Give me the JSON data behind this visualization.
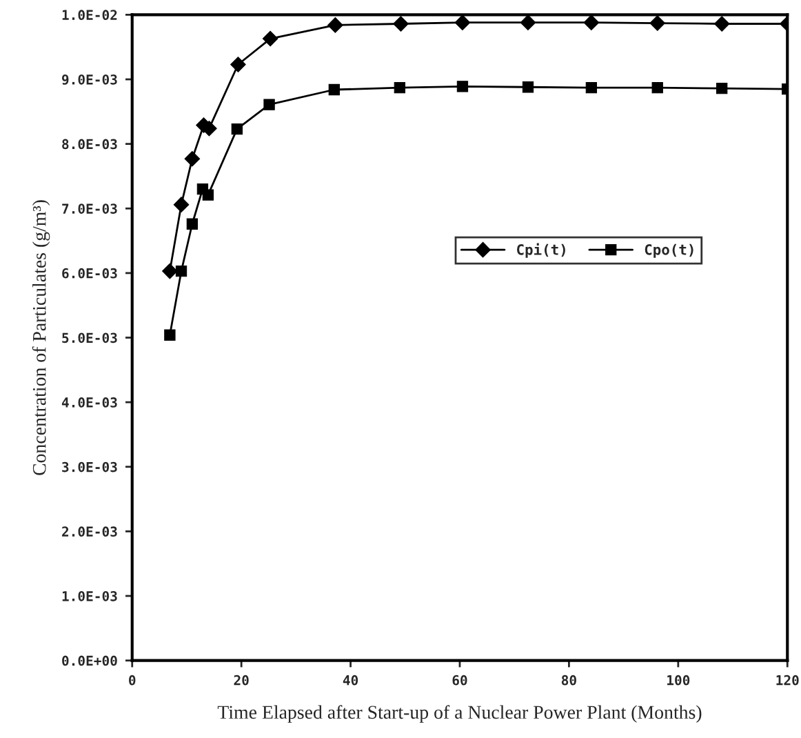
{
  "chart_data": {
    "type": "line",
    "xlabel": "Time Elapsed after Start-up of a Nuclear Power Plant (Months)",
    "ylabel": "Concentration of Particulates (g/m³)",
    "xlim": [
      0,
      120
    ],
    "xticks": [
      0,
      20,
      40,
      60,
      80,
      100,
      120
    ],
    "ylim": [
      0,
      0.01
    ],
    "yticks": [
      {
        "value": 0,
        "label": "0.0E+00"
      },
      {
        "value": 0.001,
        "label": "1.0E-03"
      },
      {
        "value": 0.002,
        "label": "2.0E-03"
      },
      {
        "value": 0.003,
        "label": "3.0E-03"
      },
      {
        "value": 0.004,
        "label": "4.0E-03"
      },
      {
        "value": 0.005,
        "label": "5.0E-03"
      },
      {
        "value": 0.006,
        "label": "6.0E-03"
      },
      {
        "value": 0.007,
        "label": "7.0E-03"
      },
      {
        "value": 0.008,
        "label": "8.0E-03"
      },
      {
        "value": 0.009,
        "label": "9.0E-03"
      },
      {
        "value": 0.01,
        "label": "1.0E-02"
      }
    ],
    "grid": false,
    "legend": "right",
    "line_style": "solid",
    "series": [
      {
        "name": "Cpi(t)",
        "color": "#000000",
        "marker": "diamond",
        "x": [
          6.9,
          9.0,
          11.0,
          13.1,
          14.1,
          19.4,
          25.3,
          37.2,
          49.2,
          60.5,
          72.5,
          84.1,
          96.2,
          108,
          120
        ],
        "values": [
          0.00603,
          0.00706,
          0.00777,
          0.00829,
          0.00824,
          0.00923,
          0.00963,
          0.00984,
          0.00986,
          0.00988,
          0.00988,
          0.00988,
          0.00987,
          0.00986,
          0.00986
        ]
      },
      {
        "name": "Cpo(t)",
        "color": "#000000",
        "marker": "square",
        "x": [
          6.9,
          9.0,
          11.0,
          12.9,
          13.9,
          19.2,
          25.1,
          37.0,
          49.0,
          60.5,
          72.5,
          84.1,
          96.2,
          108,
          120
        ],
        "values": [
          0.00504,
          0.00603,
          0.00676,
          0.0073,
          0.00721,
          0.00823,
          0.00861,
          0.00884,
          0.00887,
          0.00889,
          0.00888,
          0.00887,
          0.00887,
          0.00886,
          0.00885
        ]
      }
    ]
  }
}
